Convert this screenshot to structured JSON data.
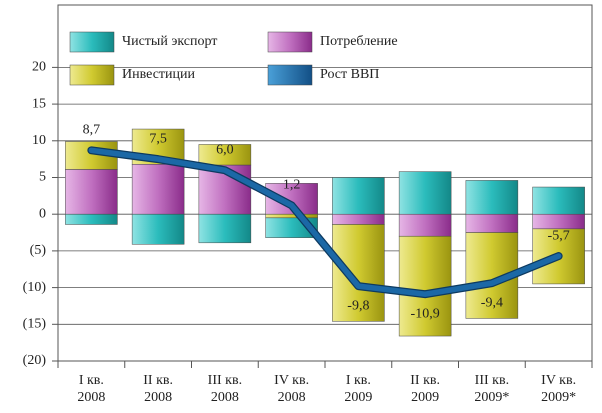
{
  "chart_data": {
    "type": "stacked-bar-line",
    "categories": [
      [
        "I кв.",
        "2008"
      ],
      [
        "II кв.",
        "2008"
      ],
      [
        "III кв.",
        "2008"
      ],
      [
        "IV кв.",
        "2008"
      ],
      [
        "I кв.",
        "2009"
      ],
      [
        "II кв.",
        "2009"
      ],
      [
        "III кв.",
        "2009*"
      ],
      [
        "IV кв.",
        "2009*"
      ]
    ],
    "series": [
      {
        "name": "Потребление",
        "color": "#b04fb0",
        "values": [
          6.1,
          6.8,
          6.7,
          4.2,
          -1.4,
          -3.0,
          -2.5,
          -2.0
        ]
      },
      {
        "name": "Инвестиции",
        "color": "#c9c322",
        "values": [
          3.8,
          4.8,
          2.8,
          -0.5,
          -13.2,
          -13.6,
          -11.7,
          -7.5
        ]
      },
      {
        "name": "Чистый экспорт",
        "color": "#1fb3b3",
        "values": [
          -1.4,
          -4.1,
          -3.9,
          -2.7,
          5.0,
          5.8,
          4.6,
          3.7
        ]
      },
      {
        "name": "Рост ВВП",
        "color": "#1b68a6",
        "type": "line",
        "values": [
          8.7,
          7.5,
          6.0,
          1.2,
          -9.8,
          -10.9,
          -9.4,
          -5.7
        ],
        "value_labels": [
          "8,7",
          "7,5",
          "6,0",
          "1,2",
          "-9,8",
          "-10,9",
          "-9,4",
          "-5,7"
        ]
      }
    ],
    "ylim": [
      -20,
      28.5
    ],
    "yticks": [
      {
        "value": -20,
        "label": "(20)"
      },
      {
        "value": -15,
        "label": "(15)"
      },
      {
        "value": -10,
        "label": "(10)"
      },
      {
        "value": -5,
        "label": "(5)"
      },
      0,
      5,
      10,
      15,
      20
    ],
    "grid": true
  }
}
